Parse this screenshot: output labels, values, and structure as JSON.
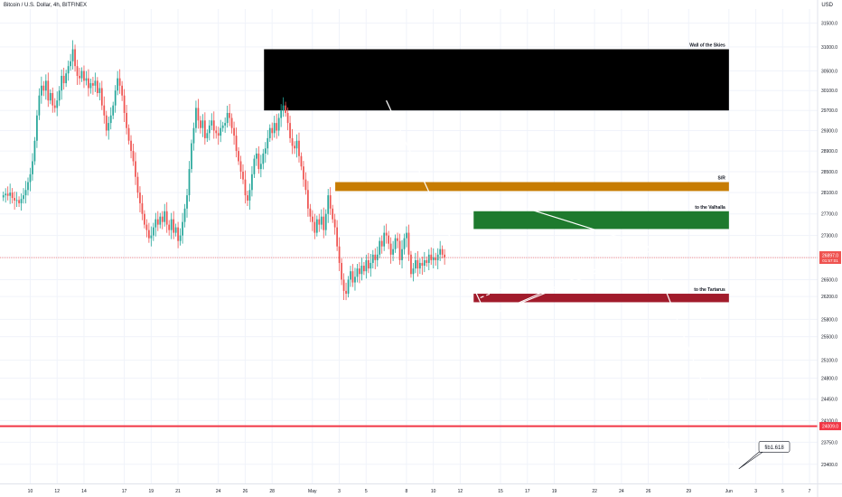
{
  "header": {
    "symbol_title": "Bitcoin / U.S. Dollar, 4h, BITFINEX",
    "currency": "USD"
  },
  "colors": {
    "up": "#26a69a",
    "down": "#ef5350",
    "price_line": "#ef5350",
    "grid": "#f0f3fa",
    "axis_text": "#131722",
    "wall_zone": "#000000",
    "sr_zone": "#c77c02",
    "valhalla_zone": "#1e7a2e",
    "tartarus_zone": "#a11b2b",
    "drawing": "#ffffff",
    "key_level": "#f23645"
  },
  "chart_data": {
    "type": "candlestick",
    "y_scale": "log",
    "ylim": [
      23100,
      31800
    ],
    "y_ticks": [
      31500.0,
      31000.0,
      30500.0,
      30100.0,
      29700.0,
      29300.0,
      28900.0,
      28500.0,
      28100.0,
      27700.0,
      27300.0,
      26900.0,
      26500.0,
      26200.0,
      25800.0,
      25500.0,
      25100.0,
      24800.0,
      24450.0,
      24100.0,
      23750.0,
      23400.0
    ],
    "y_tick_labels": [
      "31500.0",
      "31000.0",
      "30500.0",
      "30100.0",
      "29700.0",
      "29300.0",
      "28900.0",
      "28500.0",
      "28100.0",
      "27700.0",
      "27300.0",
      "26900.0",
      "26500.0",
      "26200.0",
      "25800.0",
      "25500.0",
      "25100.0",
      "24800.0",
      "24450.0",
      "24100.0",
      "23750.0",
      "23400.0"
    ],
    "x_ticks": [
      "10",
      "12",
      "14",
      "17",
      "19",
      "21",
      "24",
      "26",
      "28",
      "May",
      "3",
      "5",
      "8",
      "10",
      "12",
      "15",
      "17",
      "19",
      "22",
      "24",
      "26",
      "29",
      "Jun",
      "3",
      "5",
      "7"
    ],
    "x_tick_days": [
      0,
      2,
      4,
      7,
      9,
      11,
      14,
      16,
      18,
      21,
      23,
      25,
      28,
      30,
      32,
      35,
      37,
      39,
      42,
      44,
      46,
      49,
      52,
      54,
      56,
      58
    ],
    "x_range_days": [
      -2.25,
      58.6
    ],
    "candle_start_day": -2.0,
    "candle_interval_days": 0.1667,
    "candle_closes": [
      28050,
      28080,
      28040,
      28100,
      28000,
      27950,
      27960,
      27900,
      27980,
      28050,
      28150,
      28300,
      28450,
      28700,
      29100,
      29600,
      30000,
      30200,
      30100,
      30300,
      29900,
      30050,
      29800,
      29750,
      29900,
      30100,
      30400,
      30250,
      30450,
      30600,
      30700,
      30950,
      30600,
      30400,
      30350,
      30500,
      30300,
      30350,
      30150,
      30250,
      30200,
      30300,
      30050,
      30150,
      29800,
      29600,
      29300,
      29450,
      29600,
      29800,
      30100,
      30350,
      30200,
      30000,
      29650,
      29350,
      29100,
      28900,
      28700,
      28400,
      28100,
      27900,
      27700,
      27500,
      27400,
      27250,
      27300,
      27450,
      27600,
      27500,
      27650,
      27550,
      27750,
      27500,
      27400,
      27600,
      27350,
      27450,
      27200,
      27300,
      27550,
      27800,
      28050,
      28550,
      29050,
      29350,
      29750,
      29500,
      29350,
      29500,
      29150,
      29250,
      29400,
      29500,
      29300,
      29250,
      29200,
      29350,
      29400,
      29450,
      29650,
      29550,
      29350,
      29200,
      28900,
      28700,
      28500,
      28350,
      28050,
      27950,
      28150,
      28450,
      28750,
      28850,
      28550,
      28650,
      28850,
      28950,
      29150,
      29350,
      29250,
      29450,
      29300,
      29550,
      29700,
      29800,
      29650,
      29450,
      29150,
      29000,
      28950,
      29100,
      28800,
      28600,
      28350,
      28150,
      27800,
      27650,
      27550,
      27350,
      27600,
      27500,
      27650,
      27400,
      27700,
      28050,
      27800,
      27600,
      27450,
      27100,
      26800,
      26500,
      26300,
      26250,
      26500,
      26650,
      26450,
      26550,
      26700,
      26600,
      26750,
      26650,
      26850,
      26700,
      26800,
      26950,
      26850,
      26950,
      27200,
      27100,
      27350,
      27300,
      27150,
      26950,
      27050,
      27250,
      27200,
      26850,
      27050,
      27250,
      27350,
      26950,
      26600,
      26700,
      26850,
      26700,
      26800,
      26750,
      26850,
      26800,
      26950,
      26850,
      26900,
      26850,
      26950,
      27050,
      26950,
      26900
    ],
    "last_price": 26897.0,
    "last_price_label": "26897.0",
    "countdown_label": "01:57:01",
    "key_level": 24009.0,
    "key_level_label": "24009.0",
    "zones": [
      {
        "label": "Wall of the Skies",
        "day_from": 17.4,
        "day_to": 52.0,
        "price_top": 30950,
        "price_bottom": 29700
      },
      {
        "label": "S/R",
        "day_from": 22.7,
        "day_to": 52.0,
        "price_top": 28300,
        "price_bottom": 28130
      },
      {
        "label": "to the Valhalla",
        "day_from": 33.0,
        "day_to": 52.0,
        "price_top": 27750,
        "price_bottom": 27420
      },
      {
        "label": "to the Tartarus",
        "day_from": 33.0,
        "day_to": 52.0,
        "price_top": 26250,
        "price_bottom": 26100
      }
    ],
    "pattern_lines": [
      {
        "days": [
          26.5,
          34.0
        ],
        "prices": [
          29900,
          25850
        ]
      },
      {
        "days": [
          34.0,
          46.0
        ],
        "prices": [
          25850,
          27100
        ]
      },
      {
        "days": [
          46.0,
          52.6
        ],
        "prices": [
          27100,
          23300
        ]
      },
      {
        "days": [
          37.0,
          46.0
        ],
        "prices": [
          27800,
          27100
        ]
      },
      {
        "days": [
          34.0,
          47.0
        ],
        "prices": [
          25850,
          27100
        ]
      }
    ],
    "dashed_lines": [
      {
        "days": [
          33.5,
          44.0
        ],
        "prices": [
          26180,
          27170
        ]
      }
    ],
    "annotation": {
      "label": "fib1.618",
      "day": 54.5,
      "price": 23650
    }
  }
}
